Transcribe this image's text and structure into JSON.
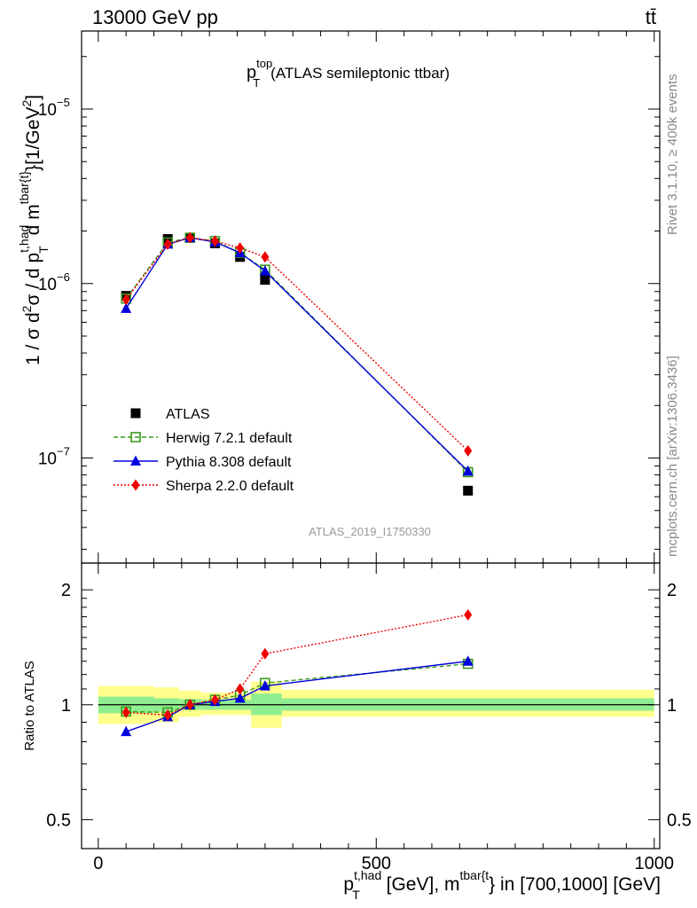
{
  "header": {
    "left": "13000 GeV pp",
    "right": "tt̄",
    "side_top": "Rivet 3.1.10, ≥ 400k events",
    "side_bottom": "mcplots.cern.ch [arXiv:1306.3436]",
    "watermark": "ATLAS_2019_I1750330"
  },
  "chart_data": [
    {
      "type": "scatter",
      "panel": "main",
      "title_main": "p",
      "title_sup": "top",
      "title_sub": "T",
      "title_rest": "(ATLAS semileptonic ttbar)",
      "ylabel": "1 / σ d²σ / d p_T^{t,had} d m^{tbar{t}} [1/GeV²]",
      "yscale": "log",
      "ylim": [
        2.5e-08,
        2.8e-05
      ],
      "xlim": [
        -30,
        1010
      ],
      "yticks": [
        {
          "value": 1e-07,
          "base": "10",
          "exp": "−7"
        },
        {
          "value": 1e-06,
          "base": "10",
          "exp": "−6"
        },
        {
          "value": 1e-05,
          "base": "10",
          "exp": "−5"
        }
      ],
      "legend_position": "lower-left",
      "x": [
        50,
        125,
        165,
        210,
        255,
        300,
        665
      ],
      "series": [
        {
          "name": "ATLAS",
          "color": "#000000",
          "marker": "square",
          "line": "none",
          "values": [
            8.5e-07,
            1.8e-06,
            1.83e-06,
            1.7e-06,
            1.42e-06,
            1.05e-06,
            6.5e-08
          ]
        },
        {
          "name": "Herwig 7.2.1 default",
          "color": "#3a9a1c",
          "marker": "open-square",
          "line": "dashed",
          "values": [
            8.2e-07,
            1.72e-06,
            1.83e-06,
            1.75e-06,
            1.5e-06,
            1.2e-06,
            8.3e-08
          ]
        },
        {
          "name": "Pythia 8.308 default",
          "color": "#0000dd",
          "marker": "triangle",
          "line": "solid",
          "values": [
            7.2e-07,
            1.68e-06,
            1.83e-06,
            1.73e-06,
            1.5e-06,
            1.18e-06,
            8.4e-08
          ]
        },
        {
          "name": "Sherpa 2.2.0 default",
          "color": "#ee0000",
          "marker": "diamond",
          "line": "dotted",
          "values": [
            8.1e-07,
            1.68e-06,
            1.83e-06,
            1.75e-06,
            1.6e-06,
            1.42e-06,
            1.1e-07
          ]
        }
      ]
    },
    {
      "type": "scatter",
      "panel": "ratio",
      "ylabel": "Ratio to ATLAS",
      "xlabel": "p_T^{t,had} [GeV], m^{tbar{t}} in [700,1000] [GeV]",
      "yscale": "log",
      "ylim": [
        0.42,
        2.35
      ],
      "xlim": [
        -30,
        1010
      ],
      "xticks": [
        0,
        500,
        1000
      ],
      "yticks": [
        0.5,
        1,
        2
      ],
      "x": [
        50,
        125,
        165,
        210,
        255,
        300,
        665
      ],
      "bands": [
        {
          "x0": 0,
          "x1": 100,
          "green": [
            0.95,
            1.05
          ],
          "yellow": [
            0.89,
            1.12
          ]
        },
        {
          "x0": 100,
          "x1": 145,
          "green": [
            0.96,
            1.04
          ],
          "yellow": [
            0.9,
            1.11
          ]
        },
        {
          "x0": 145,
          "x1": 185,
          "green": [
            0.97,
            1.035
          ],
          "yellow": [
            0.93,
            1.09
          ]
        },
        {
          "x0": 185,
          "x1": 235,
          "green": [
            0.97,
            1.03
          ],
          "yellow": [
            0.94,
            1.075
          ]
        },
        {
          "x0": 235,
          "x1": 275,
          "green": [
            0.97,
            1.03
          ],
          "yellow": [
            0.94,
            1.075
          ]
        },
        {
          "x0": 275,
          "x1": 330,
          "green": [
            0.94,
            1.07
          ],
          "yellow": [
            0.87,
            1.15
          ]
        },
        {
          "x0": 330,
          "x1": 1000,
          "green": [
            0.965,
            1.04
          ],
          "yellow": [
            0.93,
            1.095
          ]
        }
      ],
      "series": [
        {
          "name": "Herwig 7.2.1 default",
          "values": [
            0.96,
            0.955,
            1.0,
            1.03,
            1.06,
            1.14,
            1.28
          ]
        },
        {
          "name": "Pythia 8.308 default",
          "values": [
            0.85,
            0.93,
            1.0,
            1.02,
            1.04,
            1.12,
            1.3
          ]
        },
        {
          "name": "Sherpa 2.2.0 default",
          "values": [
            0.955,
            0.94,
            1.0,
            1.03,
            1.1,
            1.36,
            1.72
          ]
        }
      ]
    }
  ]
}
